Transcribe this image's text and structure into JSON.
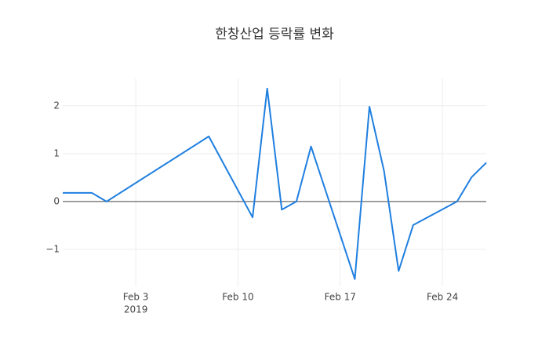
{
  "chart_data": {
    "type": "line",
    "title": "한창산업 등락률 변화",
    "x": [
      "2019-01-29",
      "2019-01-30",
      "2019-01-31",
      "2019-02-01",
      "2019-02-08",
      "2019-02-11",
      "2019-02-12",
      "2019-02-13",
      "2019-02-14",
      "2019-02-15",
      "2019-02-18",
      "2019-02-19",
      "2019-02-20",
      "2019-02-21",
      "2019-02-22",
      "2019-02-25",
      "2019-02-26",
      "2019-02-27"
    ],
    "series": [
      {
        "color": "#1f7fe0",
        "values": [
          0.18,
          0.18,
          0.18,
          0,
          1.36,
          -0.33,
          2.36,
          -0.17,
          0,
          1.15,
          -1.62,
          1.98,
          0.64,
          -1.45,
          -0.49,
          0,
          0.51,
          0.81
        ]
      }
    ],
    "xlim": [
      "2019-01-29",
      "2019-02-27"
    ],
    "xticks": [
      {
        "value": "2019-02-03",
        "label": "Feb 3"
      },
      {
        "value": "2019-02-10",
        "label": "Feb 10"
      },
      {
        "value": "2019-02-17",
        "label": "Feb 17"
      },
      {
        "value": "2019-02-24",
        "label": "Feb 24"
      }
    ],
    "xtick_year": "2019",
    "ylim": [
      -1.77,
      2.57
    ],
    "yticks": [
      {
        "value": -1,
        "label": "−1"
      },
      0,
      1,
      2
    ],
    "grid": true,
    "zeroline": true
  }
}
